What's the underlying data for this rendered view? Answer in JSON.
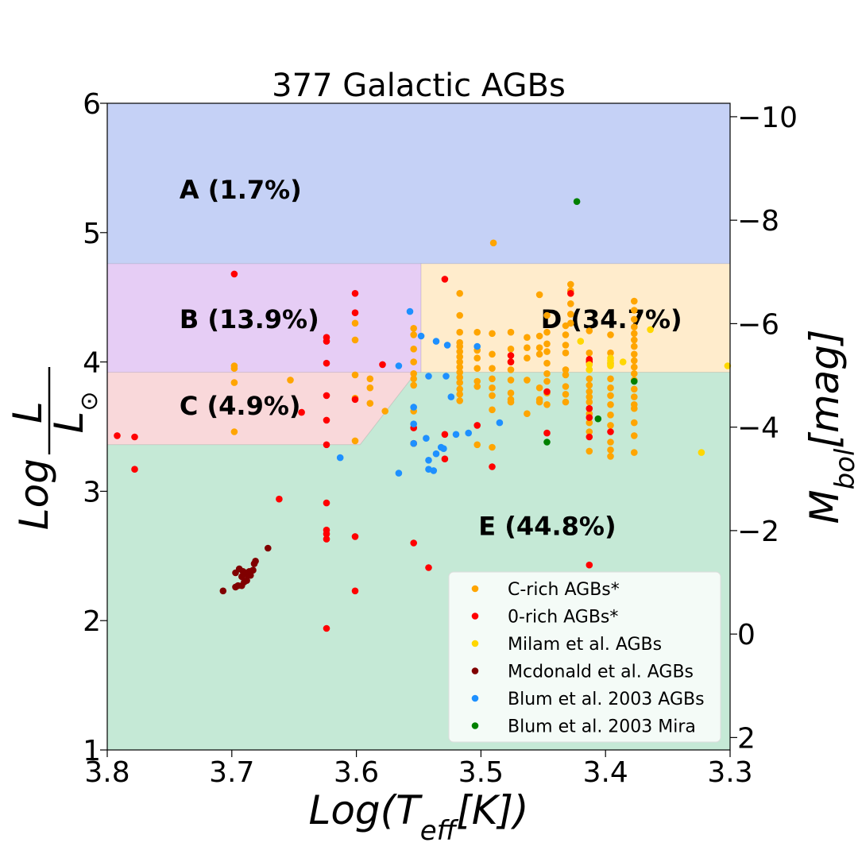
{
  "chart_data": {
    "type": "scatter",
    "title": "377 Galactic AGBs",
    "xlabel": "Log(T_eff[K])",
    "ylabel": "Log L/L⊙",
    "y2label": "M_bol[mag]",
    "xlim": [
      3.8,
      3.3
    ],
    "ylim": [
      1,
      6
    ],
    "x_inverted": true,
    "x_ticks": [
      "3.8",
      "3.7",
      "3.6",
      "3.5",
      "3.4",
      "3.3"
    ],
    "x_tick_values": [
      3.8,
      3.7,
      3.6,
      3.5,
      3.4,
      3.3
    ],
    "y_ticks": [
      "1",
      "2",
      "3",
      "4",
      "5",
      "6"
    ],
    "y_tick_values": [
      1,
      2,
      3,
      4,
      5,
      6
    ],
    "y2_ticks": [
      "−10",
      "−8",
      "−6",
      "−4",
      "−2",
      "0",
      "2"
    ],
    "y2_tick_values": [
      -10,
      -8,
      -6,
      -4,
      -2,
      0,
      2
    ],
    "mbol_sun": 4.74,
    "grid": false,
    "legend_position": "bottom-right",
    "colors": {
      "region_A": "#c5d1f6",
      "region_B": "#e6cdf5",
      "region_C": "#f9d8da",
      "region_D": "#ffeccc",
      "region_E": "#c5e9d6",
      "c_rich": "#ffa500",
      "o_rich": "#ff0000",
      "milam": "#ffd700",
      "mcdonald": "#800000",
      "blum_agb": "#1e90ff",
      "blum_mira": "#008000"
    },
    "regions": [
      {
        "id": "A",
        "label": "A (1.7%)",
        "label_x": 3.742,
        "label_y": 5.33,
        "color": "#c5d1f6",
        "polygon": [
          [
            3.8,
            4.76
          ],
          [
            3.3,
            4.76
          ],
          [
            3.3,
            6.0
          ],
          [
            3.8,
            6.0
          ]
        ]
      },
      {
        "id": "B",
        "label": "B (13.9%)",
        "label_x": 3.742,
        "label_y": 4.33,
        "color": "#e6cdf5",
        "polygon": [
          [
            3.8,
            3.92
          ],
          [
            3.548,
            3.92
          ],
          [
            3.548,
            4.76
          ],
          [
            3.8,
            4.76
          ]
        ]
      },
      {
        "id": "C",
        "label": "C (4.9%)",
        "label_x": 3.742,
        "label_y": 3.66,
        "color": "#f9d8da",
        "polygon": [
          [
            3.8,
            3.36
          ],
          [
            3.597,
            3.36
          ],
          [
            3.552,
            3.92
          ],
          [
            3.8,
            3.92
          ]
        ]
      },
      {
        "id": "D",
        "label": "D (34.7%)",
        "label_x": 3.452,
        "label_y": 4.33,
        "color": "#ffeccc",
        "polygon": [
          [
            3.548,
            3.92
          ],
          [
            3.3,
            3.92
          ],
          [
            3.3,
            4.76
          ],
          [
            3.548,
            4.76
          ]
        ]
      },
      {
        "id": "E",
        "label": "E (44.8%)",
        "label_x": 3.502,
        "label_y": 2.73,
        "color": "#c5e9d6",
        "polygon": [
          [
            3.8,
            1.0
          ],
          [
            3.3,
            1.0
          ],
          [
            3.3,
            3.92
          ],
          [
            3.552,
            3.92
          ],
          [
            3.597,
            3.36
          ],
          [
            3.8,
            3.36
          ]
        ]
      }
    ],
    "series": [
      {
        "name": "C-rich AGBs*",
        "color": "#ffa500",
        "points": [
          [
            3.49,
            4.92
          ],
          [
            3.698,
            3.97
          ],
          [
            3.698,
            3.95
          ],
          [
            3.698,
            3.84
          ],
          [
            3.698,
            3.46
          ],
          [
            3.653,
            3.86
          ],
          [
            3.601,
            4.3
          ],
          [
            3.601,
            4.17
          ],
          [
            3.601,
            3.9
          ],
          [
            3.601,
            3.72
          ],
          [
            3.601,
            3.39
          ],
          [
            3.589,
            3.87
          ],
          [
            3.589,
            3.8
          ],
          [
            3.589,
            3.68
          ],
          [
            3.577,
            3.62
          ],
          [
            3.554,
            4.26
          ],
          [
            3.554,
            4.21
          ],
          [
            3.554,
            4.1
          ],
          [
            3.554,
            4.0
          ],
          [
            3.554,
            3.91
          ],
          [
            3.554,
            3.87
          ],
          [
            3.554,
            3.82
          ],
          [
            3.554,
            3.62
          ],
          [
            3.517,
            4.53
          ],
          [
            3.517,
            4.36
          ],
          [
            3.517,
            4.23
          ],
          [
            3.517,
            4.15
          ],
          [
            3.517,
            4.12
          ],
          [
            3.517,
            4.08
          ],
          [
            3.517,
            4.04
          ],
          [
            3.517,
            4.0
          ],
          [
            3.517,
            3.96
          ],
          [
            3.517,
            3.92
          ],
          [
            3.517,
            3.88
          ],
          [
            3.517,
            3.84
          ],
          [
            3.517,
            3.79
          ],
          [
            3.517,
            3.75
          ],
          [
            3.517,
            3.7
          ],
          [
            3.503,
            4.23
          ],
          [
            3.503,
            4.09
          ],
          [
            3.503,
            4.03
          ],
          [
            3.503,
            3.95
          ],
          [
            3.503,
            3.85
          ],
          [
            3.503,
            3.81
          ],
          [
            3.503,
            3.36
          ],
          [
            3.491,
            4.22
          ],
          [
            3.491,
            4.06
          ],
          [
            3.491,
            3.95
          ],
          [
            3.491,
            3.87
          ],
          [
            3.491,
            3.8
          ],
          [
            3.491,
            3.74
          ],
          [
            3.491,
            3.63
          ],
          [
            3.491,
            3.34
          ],
          [
            3.476,
            4.23
          ],
          [
            3.476,
            4.1
          ],
          [
            3.476,
            4.0
          ],
          [
            3.476,
            3.94
          ],
          [
            3.476,
            3.86
          ],
          [
            3.476,
            3.76
          ],
          [
            3.476,
            3.71
          ],
          [
            3.476,
            3.69
          ],
          [
            3.463,
            4.19
          ],
          [
            3.463,
            4.11
          ],
          [
            3.463,
            4.03
          ],
          [
            3.463,
            3.86
          ],
          [
            3.463,
            3.6
          ],
          [
            3.453,
            4.52
          ],
          [
            3.453,
            4.2
          ],
          [
            3.453,
            4.11
          ],
          [
            3.453,
            4.06
          ],
          [
            3.453,
            3.8
          ],
          [
            3.453,
            3.71
          ],
          [
            3.453,
            3.69
          ],
          [
            3.447,
            4.36
          ],
          [
            3.447,
            4.23
          ],
          [
            3.447,
            4.14
          ],
          [
            3.447,
            4.08
          ],
          [
            3.447,
            3.99
          ],
          [
            3.447,
            3.91
          ],
          [
            3.447,
            3.85
          ],
          [
            3.447,
            3.76
          ],
          [
            3.447,
            3.67
          ],
          [
            3.432,
            4.28
          ],
          [
            3.432,
            4.21
          ],
          [
            3.432,
            4.13
          ],
          [
            3.432,
            4.07
          ],
          [
            3.432,
            3.94
          ],
          [
            3.432,
            3.9
          ],
          [
            3.432,
            3.81
          ],
          [
            3.432,
            3.75
          ],
          [
            3.432,
            3.69
          ],
          [
            3.428,
            4.6
          ],
          [
            3.428,
            4.55
          ],
          [
            3.428,
            4.45
          ],
          [
            3.428,
            4.37
          ],
          [
            3.428,
            4.3
          ],
          [
            3.413,
            4.24
          ],
          [
            3.413,
            4.07
          ],
          [
            3.413,
            4.01
          ],
          [
            3.413,
            3.94
          ],
          [
            3.413,
            3.87
          ],
          [
            3.413,
            3.82
          ],
          [
            3.413,
            3.77
          ],
          [
            3.413,
            3.73
          ],
          [
            3.413,
            3.69
          ],
          [
            3.413,
            3.6
          ],
          [
            3.413,
            3.53
          ],
          [
            3.413,
            3.46
          ],
          [
            3.413,
            3.31
          ],
          [
            3.396,
            4.21
          ],
          [
            3.396,
            4.07
          ],
          [
            3.396,
            3.99
          ],
          [
            3.396,
            3.87
          ],
          [
            3.396,
            3.8
          ],
          [
            3.396,
            3.74
          ],
          [
            3.396,
            3.67
          ],
          [
            3.396,
            3.59
          ],
          [
            3.396,
            3.51
          ],
          [
            3.396,
            3.38
          ],
          [
            3.396,
            3.32
          ],
          [
            3.396,
            3.27
          ],
          [
            3.377,
            4.47
          ],
          [
            3.377,
            4.4
          ],
          [
            3.377,
            4.33
          ],
          [
            3.377,
            4.27
          ],
          [
            3.377,
            4.22
          ],
          [
            3.377,
            4.17
          ],
          [
            3.377,
            4.12
          ],
          [
            3.377,
            4.06
          ],
          [
            3.377,
            4.01
          ],
          [
            3.377,
            3.96
          ],
          [
            3.377,
            3.91
          ],
          [
            3.377,
            3.86
          ],
          [
            3.377,
            3.79
          ],
          [
            3.377,
            3.73
          ],
          [
            3.377,
            3.67
          ],
          [
            3.377,
            3.64
          ],
          [
            3.377,
            3.53
          ],
          [
            3.377,
            3.43
          ],
          [
            3.377,
            3.3
          ]
        ]
      },
      {
        "name": "0-rich AGBs*",
        "color": "#ff0000",
        "points": [
          [
            3.792,
            3.43
          ],
          [
            3.778,
            3.42
          ],
          [
            3.778,
            3.17
          ],
          [
            3.698,
            4.68
          ],
          [
            3.662,
            2.94
          ],
          [
            3.644,
            3.61
          ],
          [
            3.624,
            4.19
          ],
          [
            3.624,
            4.16
          ],
          [
            3.624,
            3.99
          ],
          [
            3.624,
            3.74
          ],
          [
            3.624,
            3.55
          ],
          [
            3.624,
            3.36
          ],
          [
            3.624,
            2.91
          ],
          [
            3.624,
            2.7
          ],
          [
            3.624,
            2.67
          ],
          [
            3.624,
            2.63
          ],
          [
            3.624,
            1.94
          ],
          [
            3.601,
            4.53
          ],
          [
            3.601,
            4.38
          ],
          [
            3.601,
            3.71
          ],
          [
            3.601,
            2.65
          ],
          [
            3.601,
            2.23
          ],
          [
            3.579,
            3.98
          ],
          [
            3.554,
            3.49
          ],
          [
            3.554,
            3.37
          ],
          [
            3.554,
            2.6
          ],
          [
            3.542,
            2.41
          ],
          [
            3.529,
            4.64
          ],
          [
            3.529,
            3.44
          ],
          [
            3.529,
            3.25
          ],
          [
            3.503,
            3.51
          ],
          [
            3.491,
            3.19
          ],
          [
            3.476,
            4.05
          ],
          [
            3.476,
            4.0
          ],
          [
            3.447,
            3.77
          ],
          [
            3.447,
            3.45
          ],
          [
            3.428,
            4.53
          ],
          [
            3.413,
            4.02
          ],
          [
            3.413,
            4.0
          ],
          [
            3.413,
            3.64
          ],
          [
            3.413,
            3.57
          ],
          [
            3.413,
            3.42
          ],
          [
            3.413,
            2.43
          ],
          [
            3.396,
            3.46
          ]
        ]
      },
      {
        "name": "Milam et al. AGBs",
        "color": "#ffd700",
        "points": [
          [
            3.42,
            4.16
          ],
          [
            3.413,
            3.98
          ],
          [
            3.413,
            3.94
          ],
          [
            3.396,
            4.03
          ],
          [
            3.396,
            4.01
          ],
          [
            3.396,
            3.98
          ],
          [
            3.396,
            3.97
          ],
          [
            3.386,
            4.0
          ],
          [
            3.364,
            4.25
          ],
          [
            3.323,
            3.3
          ],
          [
            3.302,
            3.97
          ]
        ]
      },
      {
        "name": "Mcdonald et al. AGBs",
        "color": "#800000",
        "points": [
          [
            3.707,
            2.23
          ],
          [
            3.697,
            2.26
          ],
          [
            3.697,
            2.37
          ],
          [
            3.695,
            2.27
          ],
          [
            3.694,
            2.4
          ],
          [
            3.692,
            2.27
          ],
          [
            3.692,
            2.34
          ],
          [
            3.691,
            2.38
          ],
          [
            3.69,
            2.3
          ],
          [
            3.689,
            2.36
          ],
          [
            3.688,
            2.31
          ],
          [
            3.688,
            2.37
          ],
          [
            3.687,
            2.35
          ],
          [
            3.686,
            2.38
          ],
          [
            3.685,
            2.35
          ],
          [
            3.683,
            2.39
          ],
          [
            3.682,
            2.44
          ],
          [
            3.681,
            2.46
          ],
          [
            3.671,
            2.56
          ]
        ]
      },
      {
        "name": "Blum et al. 2003 AGBs",
        "color": "#1e90ff",
        "points": [
          [
            3.613,
            3.26
          ],
          [
            3.566,
            3.97
          ],
          [
            3.566,
            3.14
          ],
          [
            3.557,
            4.39
          ],
          [
            3.554,
            3.65
          ],
          [
            3.554,
            3.52
          ],
          [
            3.554,
            3.37
          ],
          [
            3.548,
            4.2
          ],
          [
            3.544,
            3.41
          ],
          [
            3.542,
            3.89
          ],
          [
            3.542,
            3.24
          ],
          [
            3.542,
            3.17
          ],
          [
            3.538,
            3.16
          ],
          [
            3.536,
            4.16
          ],
          [
            3.536,
            3.29
          ],
          [
            3.532,
            3.34
          ],
          [
            3.53,
            3.33
          ],
          [
            3.528,
            3.89
          ],
          [
            3.527,
            4.13
          ],
          [
            3.524,
            3.73
          ],
          [
            3.52,
            3.44
          ],
          [
            3.51,
            3.45
          ],
          [
            3.503,
            4.12
          ],
          [
            3.485,
            3.53
          ]
        ]
      },
      {
        "name": "Blum et al. 2003 Mira",
        "color": "#008000",
        "points": [
          [
            3.423,
            5.24
          ],
          [
            3.447,
            3.38
          ],
          [
            3.406,
            3.56
          ],
          [
            3.377,
            3.85
          ]
        ]
      }
    ]
  }
}
